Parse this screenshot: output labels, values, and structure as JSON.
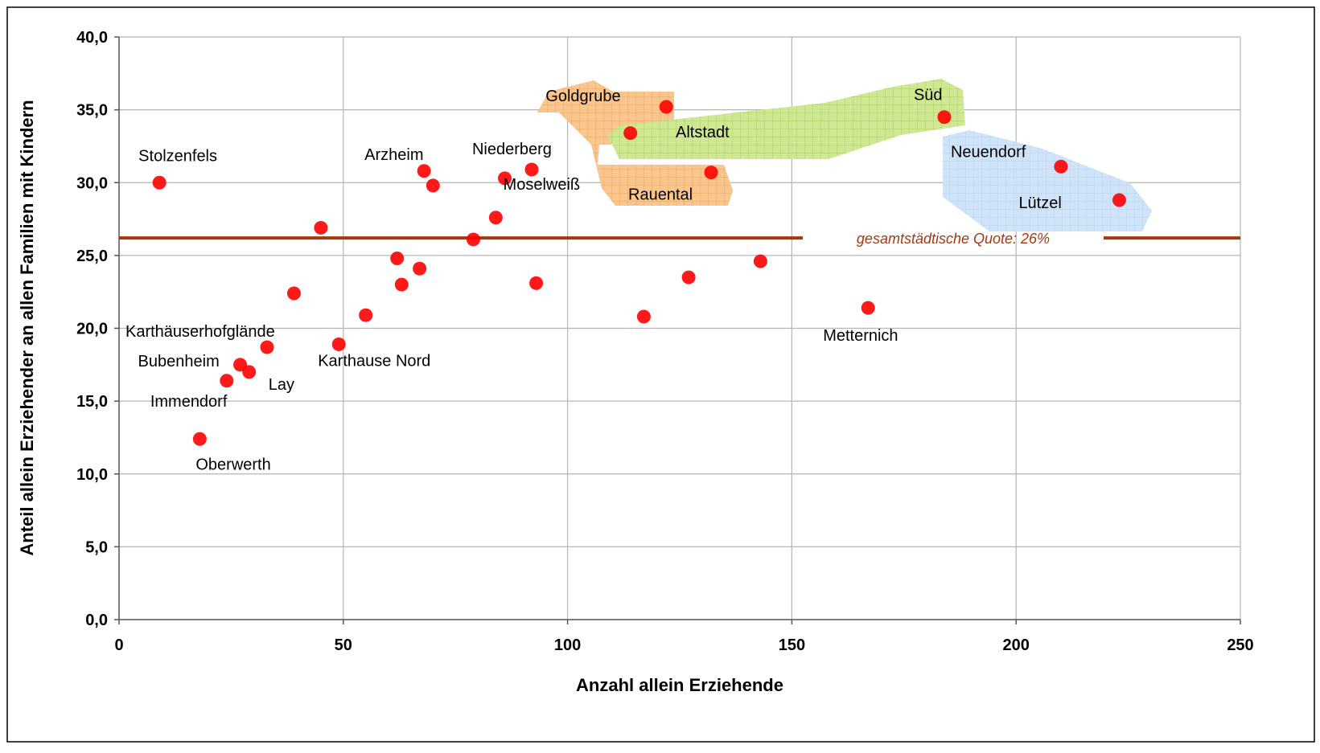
{
  "chart_data": {
    "type": "scatter",
    "xlabel": "Anzahl allein Erziehende",
    "ylabel": "Anteil allein Erziehender an allen Familien mit Kindern",
    "xlim": [
      0,
      250
    ],
    "ylim": [
      0,
      40
    ],
    "x_ticks": [
      0,
      50,
      100,
      150,
      200,
      250
    ],
    "x_tick_labels": [
      "0",
      "50",
      "100",
      "150",
      "200",
      "250"
    ],
    "y_ticks": [
      0,
      5,
      10,
      15,
      20,
      25,
      30,
      35,
      40
    ],
    "y_tick_labels": [
      "0,0",
      "5,0",
      "10,0",
      "15,0",
      "20,0",
      "25,0",
      "30,0",
      "35,0",
      "40,0"
    ],
    "grid": true,
    "reference_line": {
      "y": 26.2,
      "label": "gesamtstädtische Quote: 26%",
      "color": "#a33a0f"
    },
    "point_color": "#ff0000",
    "points": [
      {
        "x": 9,
        "y": 30.0,
        "label": "Stolzenfels"
      },
      {
        "x": 18,
        "y": 12.4,
        "label": "Oberwerth"
      },
      {
        "x": 24,
        "y": 16.4,
        "label": "Immendorf"
      },
      {
        "x": 27,
        "y": 17.5,
        "label": "Bubenheim"
      },
      {
        "x": 29,
        "y": 17.0,
        "label": "Lay"
      },
      {
        "x": 33,
        "y": 18.7,
        "label": "Karthäuserhofglände"
      },
      {
        "x": 39,
        "y": 22.4,
        "label": ""
      },
      {
        "x": 45,
        "y": 26.9,
        "label": ""
      },
      {
        "x": 49,
        "y": 18.9,
        "label": "Karthause Nord"
      },
      {
        "x": 55,
        "y": 20.9,
        "label": ""
      },
      {
        "x": 62,
        "y": 24.8,
        "label": ""
      },
      {
        "x": 63,
        "y": 23.0,
        "label": ""
      },
      {
        "x": 67,
        "y": 24.1,
        "label": ""
      },
      {
        "x": 68,
        "y": 30.8,
        "label": "Arzheim"
      },
      {
        "x": 70,
        "y": 29.8,
        "label": ""
      },
      {
        "x": 79,
        "y": 26.1,
        "label": ""
      },
      {
        "x": 84,
        "y": 27.6,
        "label": ""
      },
      {
        "x": 86,
        "y": 30.3,
        "label": "Moselweiß"
      },
      {
        "x": 92,
        "y": 30.9,
        "label": "Niederberg"
      },
      {
        "x": 93,
        "y": 23.1,
        "label": ""
      },
      {
        "x": 114,
        "y": 33.4,
        "label": ""
      },
      {
        "x": 117,
        "y": 20.8,
        "label": ""
      },
      {
        "x": 122,
        "y": 35.2,
        "label": "Goldgrube"
      },
      {
        "x": 127,
        "y": 23.5,
        "label": ""
      },
      {
        "x": 132,
        "y": 30.7,
        "label": "Rauental"
      },
      {
        "x": 143,
        "y": 24.6,
        "label": ""
      },
      {
        "x": 167,
        "y": 21.4,
        "label": "Metternich"
      },
      {
        "x": 184,
        "y": 34.5,
        "label": "Süd"
      },
      {
        "x": 210,
        "y": 31.1,
        "label": "Neuendorf"
      },
      {
        "x": 223,
        "y": 28.8,
        "label": "Lützel"
      }
    ],
    "region_labels": [
      "Altstadt"
    ],
    "region_colors": {
      "orange": "#f5a341",
      "green": "#a5d13a",
      "blue": "#9ec4ee"
    }
  }
}
